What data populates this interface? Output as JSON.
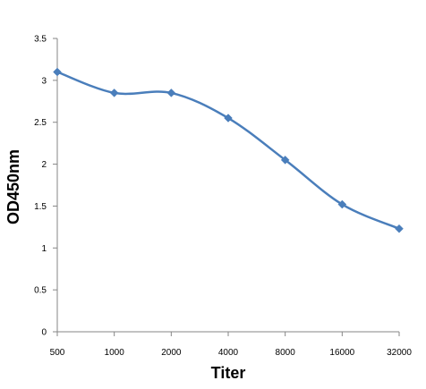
{
  "chart_data": {
    "type": "line",
    "title": "",
    "xlabel": "Titer",
    "ylabel": "OD450nm",
    "categories": [
      "500",
      "1000",
      "2000",
      "4000",
      "8000",
      "16000",
      "32000"
    ],
    "series": [
      {
        "values": [
          3.1,
          2.85,
          2.85,
          2.55,
          2.05,
          1.52,
          1.23
        ],
        "color": "#4a7ebb"
      }
    ],
    "ylim": [
      0,
      3.5
    ],
    "yticks": [
      "0",
      "0.5",
      "1",
      "1.5",
      "2",
      "2.5",
      "3",
      "3.5"
    ],
    "grid": false,
    "legend": "none",
    "marker": "diamond",
    "smooth": true
  }
}
